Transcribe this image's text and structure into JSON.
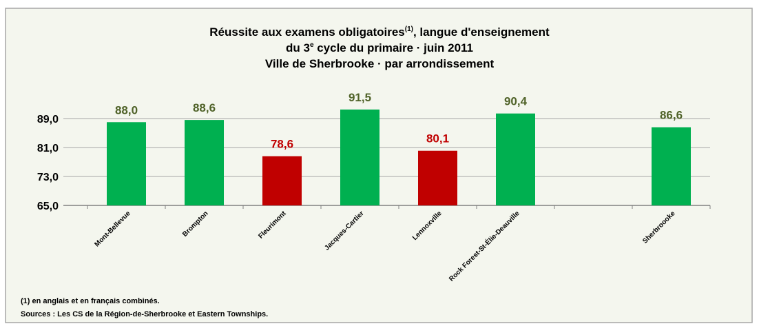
{
  "chart_data": {
    "type": "bar",
    "title": [
      [
        "Réussite aux examens obligatoires",
        "(1)",
        ", langue d'enseignement"
      ],
      [
        "du 3",
        "e",
        " cycle du primaire · juin 2011"
      ],
      [
        "Ville de Sherbrooke · par arrondissement"
      ]
    ],
    "categories": [
      "Mont-Bellevue",
      "Brompton",
      "Fleurimont",
      "Jacques-Cartier",
      "Lennoxville",
      "Rock Forest-St-Élie-Deauville",
      null,
      "Sherbroooke"
    ],
    "values": [
      88.0,
      88.6,
      78.6,
      91.5,
      80.1,
      90.4,
      null,
      86.6
    ],
    "value_labels": [
      "88,0",
      "88,6",
      "78,6",
      "91,5",
      "80,1",
      "90,4",
      null,
      "86,6"
    ],
    "colors": [
      "#00b050",
      "#00b050",
      "#c00000",
      "#00b050",
      "#c00000",
      "#00b050",
      null,
      "#00b050"
    ],
    "value_label_colors": [
      "#4f6228",
      "#4f6228",
      "#c00000",
      "#4f6228",
      "#c00000",
      "#4f6228",
      null,
      "#4f6228"
    ],
    "ylim": [
      65,
      97
    ],
    "yticks": [
      {
        "value": 65,
        "label": "65,0"
      },
      {
        "value": 73,
        "label": "73,0"
      },
      {
        "value": 81,
        "label": "81,0"
      },
      {
        "value": 89,
        "label": "89,0"
      }
    ],
    "grid": true,
    "notes": [
      "(1) en anglais et en français combinés.",
      "Sources : Les CS de la Région-de-Sherbrooke et Eastern Townships."
    ]
  }
}
